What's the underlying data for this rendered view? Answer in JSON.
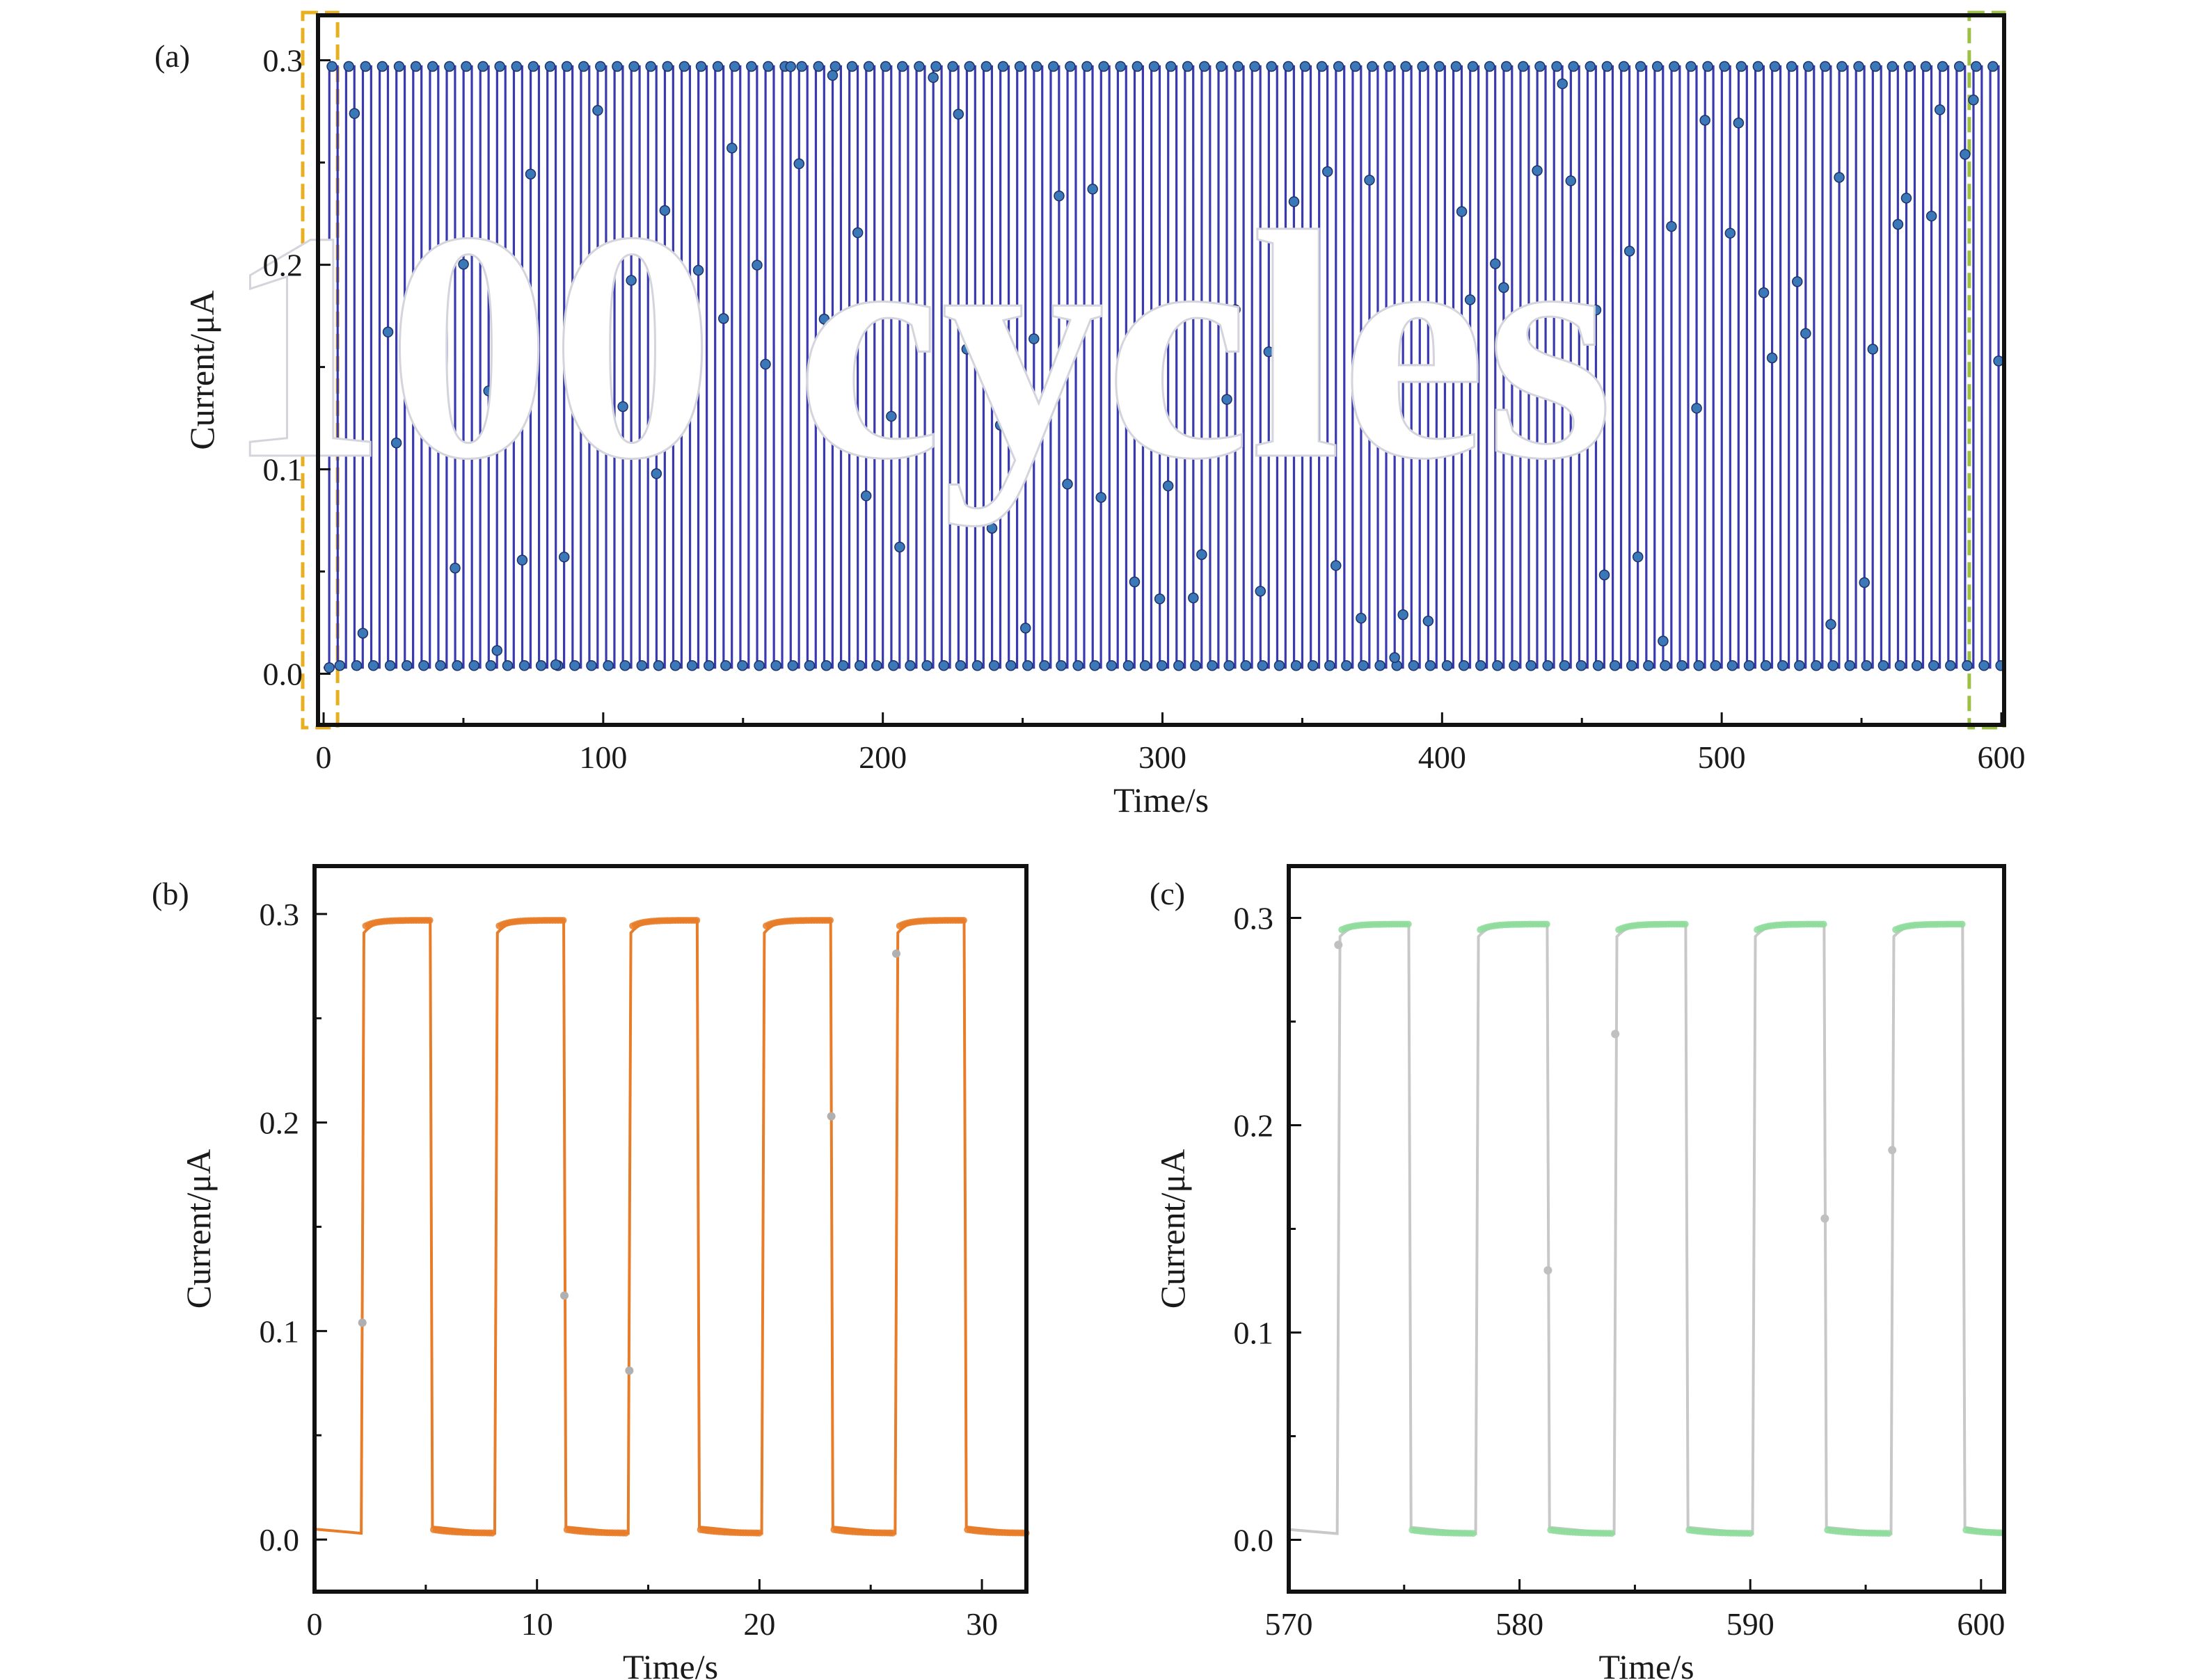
{
  "chart_data": [
    {
      "panel": "(a)",
      "type": "line",
      "annotation": "100 cycles",
      "xlabel": "Time/s",
      "ylabel": "Current/μA",
      "xlim": [
        -2,
        601
      ],
      "ylim": [
        -0.025,
        0.322
      ],
      "xticks": [
        0,
        100,
        200,
        300,
        400,
        500,
        600
      ],
      "yticks": [
        0.0,
        0.1,
        0.2,
        0.3
      ],
      "xtick_labels": [
        "0",
        "100",
        "200",
        "300",
        "400",
        "500",
        "600"
      ],
      "ytick_labels": [
        "0.0",
        "0.1",
        "0.2",
        "0.3"
      ],
      "cycles": 100,
      "period_s": 6,
      "light_on_s": 3,
      "first_on_s": 2,
      "on_current": 0.297,
      "off_current": 0.003,
      "highlight_regions": [
        {
          "x": [
            -2,
            5
          ],
          "color": "#e8b020"
        },
        {
          "x": [
            594,
            601
          ],
          "color": "#9cc040"
        }
      ],
      "series": [
        {
          "color": "#3a3ab0",
          "marker_color": "#3a78b8"
        }
      ],
      "grid": false
    },
    {
      "panel": "(b)",
      "type": "line",
      "xlabel": "Time/s",
      "ylabel": "Current/μA",
      "xlim": [
        0,
        32
      ],
      "ylim": [
        -0.025,
        0.323
      ],
      "xticks": [
        0,
        10,
        20,
        30
      ],
      "yticks": [
        0.0,
        0.1,
        0.2,
        0.3
      ],
      "xtick_labels": [
        "0",
        "10",
        "20",
        "30"
      ],
      "ytick_labels": [
        "0.0",
        "0.1",
        "0.2",
        "0.3"
      ],
      "on_intervals": [
        [
          2.1,
          5.2
        ],
        [
          8.1,
          11.2
        ],
        [
          14.1,
          17.2
        ],
        [
          20.1,
          23.2
        ],
        [
          26.1,
          29.2
        ]
      ],
      "on_current": 0.297,
      "off_current": 0.003,
      "series": [
        {
          "color": "#e87c28",
          "marker_color": "#e87c28"
        }
      ],
      "grid": false
    },
    {
      "panel": "(c)",
      "type": "line",
      "xlabel": "Time/s",
      "ylabel": "Current/μA",
      "xlim": [
        570,
        601
      ],
      "ylim": [
        -0.025,
        0.325
      ],
      "xticks": [
        570,
        580,
        590,
        600
      ],
      "yticks": [
        0.0,
        0.1,
        0.2,
        0.3
      ],
      "xtick_labels": [
        "570",
        "580",
        "590",
        "600"
      ],
      "ytick_labels": [
        "0.0",
        "0.1",
        "0.2",
        "0.3"
      ],
      "on_intervals": [
        [
          572.1,
          575.2
        ],
        [
          578.1,
          581.2
        ],
        [
          584.1,
          587.2
        ],
        [
          590.1,
          593.2
        ],
        [
          596.1,
          599.2
        ]
      ],
      "on_current": 0.297,
      "off_current": 0.003,
      "series": [
        {
          "color": "#c8c8c8",
          "marker_color": "#8fdc9c"
        }
      ],
      "grid": false
    }
  ]
}
